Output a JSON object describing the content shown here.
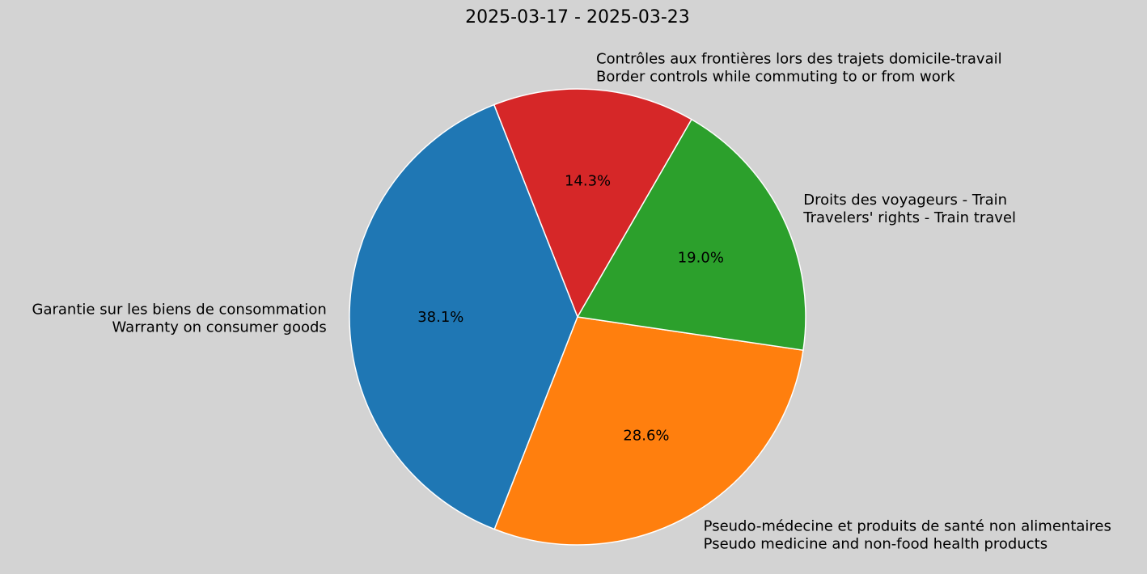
{
  "chart_data": {
    "type": "pie",
    "title": "2025-03-17 - 2025-03-23",
    "slices": [
      {
        "label_fr": "Contrôles aux frontières lors des trajets domicile-travail",
        "label_en": "Border controls while commuting to or from work",
        "value": 14.3,
        "pct_label": "14.3%",
        "color": "#d62728"
      },
      {
        "label_fr": "Garantie sur les biens de consommation",
        "label_en": "Warranty on consumer goods",
        "value": 38.1,
        "pct_label": "38.1%",
        "color": "#1f77b4"
      },
      {
        "label_fr": "Pseudo-médecine et produits de santé non alimentaires",
        "label_en": "Pseudo medicine and non-food health products",
        "value": 28.6,
        "pct_label": "28.6%",
        "color": "#ff7f0e"
      },
      {
        "label_fr": "Droits des voyageurs - Train",
        "label_en": "Travelers' rights - Train travel",
        "value": 19.0,
        "pct_label": "19.0%",
        "color": "#2ca02c"
      }
    ],
    "start_angle_deg": 60,
    "direction": "counterclockwise",
    "legend": "none"
  }
}
